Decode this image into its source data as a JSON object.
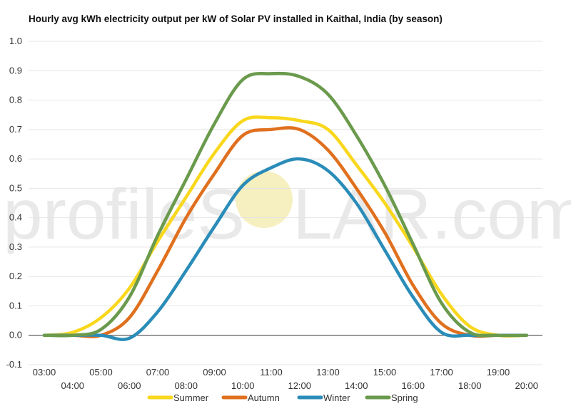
{
  "watermark": {
    "left": "profileS",
    "right": "LAR.com"
  },
  "chart_data": {
    "type": "line",
    "title": "Hourly avg kWh electricity output per kW of Solar PV installed in Kaithal, India (by season)",
    "xlabel": "",
    "ylabel": "",
    "x": [
      "03:00",
      "04:00",
      "05:00",
      "06:00",
      "07:00",
      "08:00",
      "09:00",
      "10:00",
      "11:00",
      "12:00",
      "13:00",
      "14:00",
      "15:00",
      "16:00",
      "17:00",
      "18:00",
      "19:00",
      "20:00"
    ],
    "x_ticks_upper": [
      "03:00",
      "05:00",
      "07:00",
      "09:00",
      "11:00",
      "13:00",
      "15:00",
      "17:00",
      "19:00"
    ],
    "x_ticks_lower": [
      "04:00",
      "06:00",
      "08:00",
      "10:00",
      "12:00",
      "14:00",
      "16:00",
      "18:00",
      "20:00"
    ],
    "y_ticks": [
      "1.0",
      "0.9",
      "0.8",
      "0.7",
      "0.6",
      "0.5",
      "0.4",
      "0.3",
      "0.2",
      "0.1",
      "0.0",
      "-0.1"
    ],
    "ylim": [
      -0.1,
      1.0
    ],
    "grid": true,
    "legend_position": "bottom",
    "series": [
      {
        "name": "Summer",
        "color": "#f9d71c",
        "values": [
          0.0,
          0.01,
          0.06,
          0.16,
          0.32,
          0.47,
          0.62,
          0.73,
          0.74,
          0.73,
          0.7,
          0.58,
          0.45,
          0.3,
          0.14,
          0.03,
          0.0,
          0.0
        ]
      },
      {
        "name": "Autumn",
        "color": "#e0701e",
        "values": [
          0.0,
          0.0,
          0.0,
          0.06,
          0.22,
          0.4,
          0.55,
          0.68,
          0.7,
          0.7,
          0.63,
          0.5,
          0.35,
          0.17,
          0.04,
          0.0,
          0.0,
          0.0
        ]
      },
      {
        "name": "Winter",
        "color": "#2a8cb8",
        "values": [
          0.0,
          0.0,
          0.0,
          -0.01,
          0.08,
          0.22,
          0.37,
          0.51,
          0.57,
          0.6,
          0.56,
          0.45,
          0.29,
          0.13,
          0.01,
          0.0,
          0.0,
          0.0
        ]
      },
      {
        "name": "Spring",
        "color": "#6a9a4c",
        "values": [
          0.0,
          0.0,
          0.02,
          0.13,
          0.34,
          0.53,
          0.72,
          0.87,
          0.89,
          0.88,
          0.82,
          0.68,
          0.51,
          0.31,
          0.11,
          0.01,
          0.0,
          0.0
        ]
      }
    ]
  }
}
